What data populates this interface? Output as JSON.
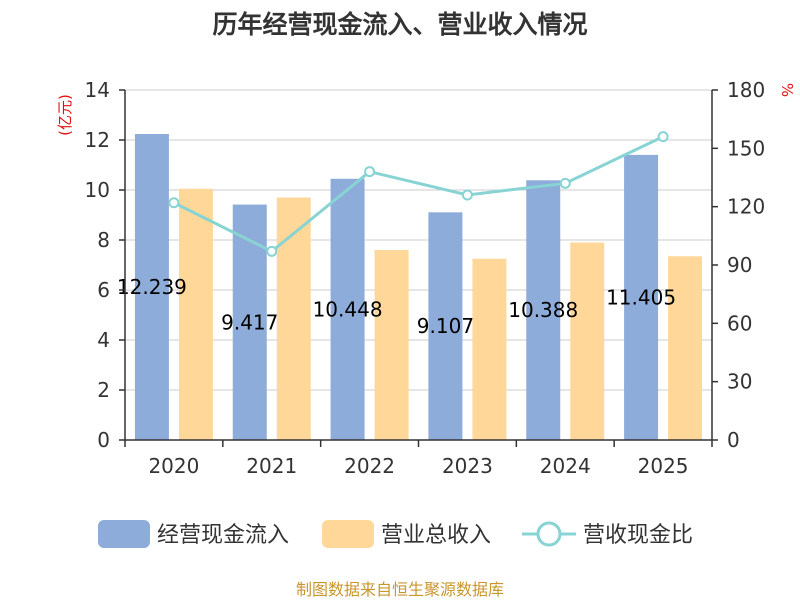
{
  "chart_data": {
    "type": "bar",
    "title": "历年经营现金流入、营业收入情况",
    "categories": [
      "2020",
      "2021",
      "2022",
      "2023",
      "2024",
      "2025"
    ],
    "series": [
      {
        "name": "经营现金流入",
        "type": "bar",
        "axis": "left",
        "color": "#8eacd9",
        "values": [
          12.239,
          9.417,
          10.448,
          9.107,
          10.388,
          11.405
        ],
        "labels": [
          "12.239",
          "9.417",
          "10.448",
          "9.107",
          "10.388",
          "11.405"
        ]
      },
      {
        "name": "营业总收入",
        "type": "bar",
        "axis": "left",
        "color": "#ffd899",
        "values": [
          10.05,
          9.7,
          7.6,
          7.25,
          7.9,
          7.35
        ]
      },
      {
        "name": "营收现金比",
        "type": "line",
        "axis": "right",
        "color": "#88d3d3",
        "values": [
          122,
          97,
          138,
          126,
          132,
          156
        ]
      }
    ],
    "y_left": {
      "label": "(亿元)",
      "min": 0,
      "max": 14,
      "ticks": [
        "0",
        "2",
        "4",
        "6",
        "8",
        "10",
        "12",
        "14"
      ]
    },
    "y_right": {
      "label": "%",
      "min": 0,
      "max": 180,
      "ticks": [
        "0",
        "30",
        "60",
        "90",
        "120",
        "150",
        "180"
      ]
    },
    "grid": true,
    "legend_position": "bottom"
  },
  "source": "制图数据来自恒生聚源数据库"
}
